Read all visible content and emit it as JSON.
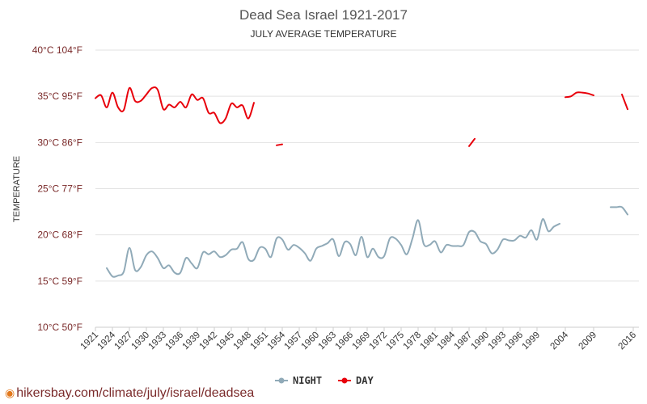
{
  "chart_data": {
    "type": "line",
    "title": "Dead Sea Israel 1921-2017",
    "subtitle": "JULY AVERAGE TEMPERATURE",
    "ylabel": "TEMPERATURE",
    "ylim": [
      10,
      40
    ],
    "y_ticks": [
      {
        "value": 40,
        "label": "40°C 104°F"
      },
      {
        "value": 35,
        "label": "35°C 95°F"
      },
      {
        "value": 30,
        "label": "30°C 86°F"
      },
      {
        "value": 25,
        "label": "25°C 77°F"
      },
      {
        "value": 20,
        "label": "20°C 68°F"
      },
      {
        "value": 15,
        "label": "15°C 59°F"
      },
      {
        "value": 10,
        "label": "10°C 50°F"
      }
    ],
    "xlim": [
      1921,
      2017
    ],
    "x_ticks": [
      1921,
      1924,
      1927,
      1930,
      1933,
      1936,
      1939,
      1942,
      1945,
      1948,
      1951,
      1954,
      1957,
      1960,
      1963,
      1966,
      1969,
      1972,
      1975,
      1978,
      1981,
      1984,
      1987,
      1990,
      1993,
      1996,
      1999,
      2004,
      2009,
      2016
    ],
    "legend_position": "bottom-center",
    "grid": true,
    "series": [
      {
        "name": "NIGHT",
        "color": "#90aab8",
        "segments": [
          [
            [
              1923,
              16.4
            ],
            [
              1924,
              15.5
            ],
            [
              1925,
              15.6
            ],
            [
              1926,
              16.0
            ],
            [
              1927,
              18.6
            ],
            [
              1928,
              16.2
            ],
            [
              1929,
              16.5
            ],
            [
              1930,
              17.8
            ],
            [
              1931,
              18.2
            ],
            [
              1932,
              17.5
            ],
            [
              1933,
              16.4
            ],
            [
              1934,
              16.7
            ],
            [
              1935,
              15.9
            ],
            [
              1936,
              15.9
            ],
            [
              1937,
              17.5
            ],
            [
              1938,
              16.9
            ],
            [
              1939,
              16.4
            ],
            [
              1940,
              18.1
            ],
            [
              1941,
              17.9
            ],
            [
              1942,
              18.2
            ],
            [
              1943,
              17.6
            ],
            [
              1944,
              17.8
            ],
            [
              1945,
              18.4
            ],
            [
              1946,
              18.5
            ],
            [
              1947,
              19.2
            ],
            [
              1948,
              17.4
            ],
            [
              1949,
              17.3
            ],
            [
              1950,
              18.6
            ],
            [
              1951,
              18.5
            ],
            [
              1952,
              17.6
            ],
            [
              1953,
              19.6
            ],
            [
              1954,
              19.5
            ],
            [
              1955,
              18.4
            ],
            [
              1956,
              18.9
            ],
            [
              1957,
              18.6
            ],
            [
              1958,
              18.0
            ],
            [
              1959,
              17.2
            ],
            [
              1960,
              18.5
            ],
            [
              1961,
              18.8
            ],
            [
              1962,
              19.1
            ],
            [
              1963,
              19.5
            ],
            [
              1964,
              17.7
            ],
            [
              1965,
              19.2
            ],
            [
              1966,
              19.0
            ],
            [
              1967,
              17.8
            ],
            [
              1968,
              19.8
            ],
            [
              1969,
              17.6
            ],
            [
              1970,
              18.5
            ],
            [
              1971,
              17.6
            ],
            [
              1972,
              17.7
            ],
            [
              1973,
              19.6
            ],
            [
              1974,
              19.6
            ],
            [
              1975,
              18.9
            ],
            [
              1976,
              17.9
            ],
            [
              1977,
              19.6
            ],
            [
              1978,
              21.6
            ],
            [
              1979,
              19.0
            ],
            [
              1980,
              18.9
            ],
            [
              1981,
              19.3
            ],
            [
              1982,
              18.1
            ],
            [
              1983,
              18.9
            ],
            [
              1984,
              18.8
            ],
            [
              1985,
              18.8
            ],
            [
              1986,
              18.9
            ],
            [
              1987,
              20.3
            ],
            [
              1988,
              20.3
            ],
            [
              1989,
              19.3
            ],
            [
              1990,
              19.0
            ],
            [
              1991,
              18.0
            ],
            [
              1992,
              18.4
            ],
            [
              1993,
              19.5
            ],
            [
              1994,
              19.4
            ],
            [
              1995,
              19.4
            ],
            [
              1996,
              19.9
            ],
            [
              1997,
              19.7
            ],
            [
              1998,
              20.5
            ],
            [
              1999,
              19.5
            ],
            [
              2000,
              21.7
            ],
            [
              2001,
              20.4
            ],
            [
              2002,
              20.9
            ],
            [
              2003,
              21.2
            ]
          ],
          [
            [
              2012,
              23.0
            ],
            [
              2013,
              23.0
            ],
            [
              2014,
              23.0
            ],
            [
              2015,
              22.2
            ]
          ]
        ]
      },
      {
        "name": "DAY",
        "color": "#e8000b",
        "segments": [
          [
            [
              1921,
              34.8
            ],
            [
              1922,
              35.1
            ],
            [
              1923,
              33.8
            ],
            [
              1924,
              35.4
            ],
            [
              1925,
              33.8
            ],
            [
              1926,
              33.5
            ],
            [
              1927,
              35.9
            ],
            [
              1928,
              34.5
            ],
            [
              1929,
              34.5
            ],
            [
              1930,
              35.2
            ],
            [
              1931,
              35.9
            ],
            [
              1932,
              35.7
            ],
            [
              1933,
              33.6
            ],
            [
              1934,
              34.1
            ],
            [
              1935,
              33.8
            ],
            [
              1936,
              34.4
            ],
            [
              1937,
              33.8
            ],
            [
              1938,
              35.2
            ],
            [
              1939,
              34.6
            ],
            [
              1940,
              34.8
            ],
            [
              1941,
              33.2
            ],
            [
              1942,
              33.2
            ],
            [
              1943,
              32.1
            ],
            [
              1944,
              32.6
            ],
            [
              1945,
              34.2
            ],
            [
              1946,
              33.8
            ],
            [
              1947,
              34.0
            ],
            [
              1948,
              32.6
            ],
            [
              1949,
              34.3
            ]
          ],
          [
            [
              1953,
              29.7
            ],
            [
              1954,
              29.8
            ]
          ],
          [
            [
              1987,
              29.6
            ],
            [
              1988,
              30.4
            ]
          ],
          [
            [
              2004,
              34.9
            ],
            [
              2005,
              35.0
            ],
            [
              2006,
              35.4
            ],
            [
              2007,
              35.4
            ],
            [
              2008,
              35.3
            ],
            [
              2009,
              35.1
            ]
          ],
          [
            [
              2014,
              35.2
            ],
            [
              2015,
              33.6
            ]
          ]
        ]
      }
    ]
  },
  "footer": {
    "pin_icon": "location-pin-icon",
    "url": "hikersbay.com/climate/july/israel/deadsea"
  }
}
